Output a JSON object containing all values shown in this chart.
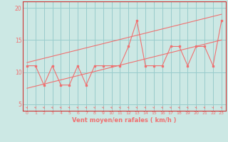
{
  "xlabel": "Vent moyen/en rafales ( km/h )",
  "bg_color": "#cce8e4",
  "line_color": "#f07070",
  "grid_color": "#99cccc",
  "spine_color": "#cc3333",
  "xlim": [
    -0.5,
    23.5
  ],
  "ylim": [
    4.0,
    21.0
  ],
  "xticks": [
    0,
    1,
    2,
    3,
    4,
    5,
    6,
    7,
    8,
    9,
    10,
    11,
    12,
    13,
    14,
    15,
    16,
    17,
    18,
    19,
    20,
    21,
    22,
    23
  ],
  "yticks": [
    5,
    10,
    15,
    20
  ],
  "main_x": [
    0,
    1,
    2,
    3,
    4,
    5,
    6,
    7,
    8,
    9,
    10,
    11,
    12,
    13,
    14,
    15,
    16,
    17,
    18,
    19,
    20,
    21,
    22,
    23
  ],
  "main_y": [
    11,
    11,
    8,
    11,
    8,
    8,
    11,
    8,
    11,
    11,
    11,
    11,
    14,
    18,
    11,
    11,
    11,
    14,
    14,
    11,
    14,
    14,
    11,
    18
  ],
  "upper_line_x": [
    0,
    23
  ],
  "upper_line_y": [
    11.5,
    19.0
  ],
  "lower_line_x": [
    0,
    23
  ],
  "lower_line_y": [
    7.5,
    15.0
  ]
}
